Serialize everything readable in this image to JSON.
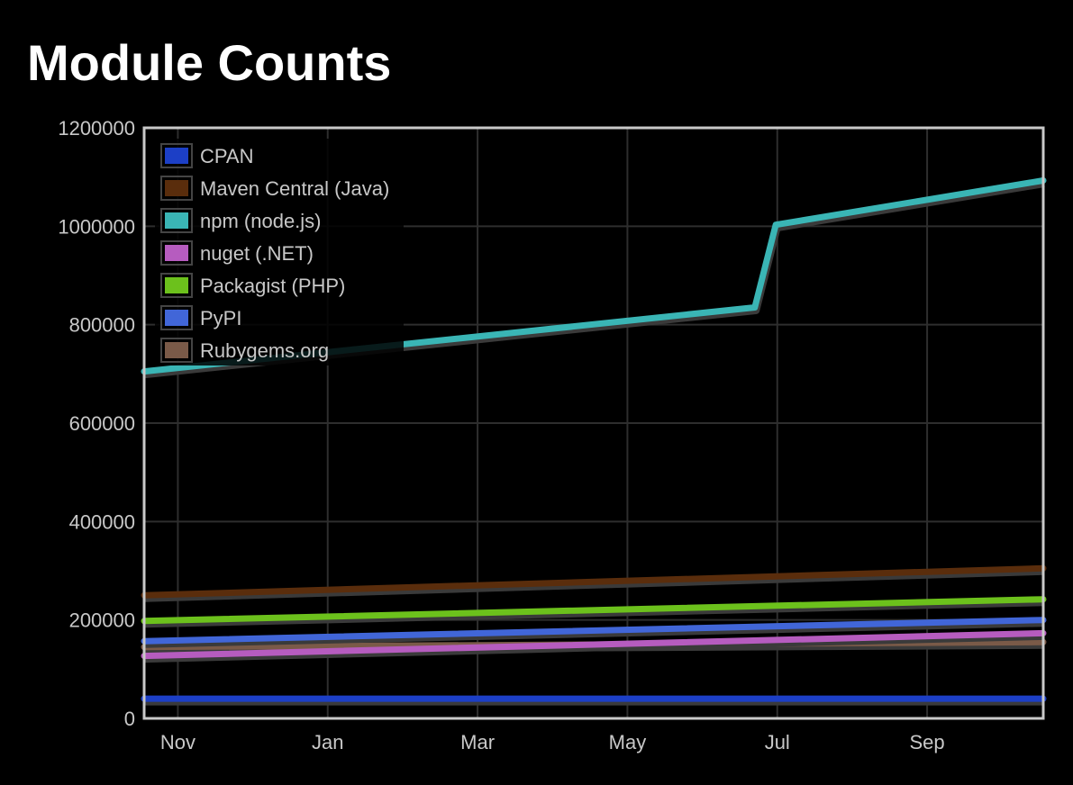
{
  "title": "Module Counts",
  "chart_data": {
    "type": "line",
    "title": "Module Counts",
    "xlabel": "",
    "ylabel": "",
    "ylim": [
      0,
      1200000
    ],
    "y_ticks": [
      0,
      200000,
      400000,
      600000,
      800000,
      1000000,
      1200000
    ],
    "y_tick_labels": [
      "0",
      "200000",
      "400000",
      "600000",
      "800000",
      "1000000",
      "1200000"
    ],
    "x_range": [
      -0.45,
      11.55
    ],
    "x_ticks": [
      0,
      2,
      4,
      6,
      8,
      10
    ],
    "x_tick_labels": [
      "Nov",
      "Jan",
      "Mar",
      "May",
      "Jul",
      "Sep"
    ],
    "grid": true,
    "legend_position": "top-left",
    "series": [
      {
        "name": "CPAN",
        "color": "#1c3fc6",
        "x": [
          -0.45,
          11.55
        ],
        "y": [
          40000,
          40000
        ]
      },
      {
        "name": "Maven Central (Java)",
        "color": "#5a2d0c",
        "x": [
          -0.45,
          11.55
        ],
        "y": [
          250000,
          305000
        ]
      },
      {
        "name": "npm (node.js)",
        "color": "#3ab5b5",
        "x": [
          -0.45,
          7.7,
          7.98,
          11.55
        ],
        "y": [
          705000,
          835000,
          1003000,
          1093000
        ]
      },
      {
        "name": "nuget (.NET)",
        "color": "#b65cbf",
        "x": [
          -0.45,
          11.55
        ],
        "y": [
          127000,
          173000
        ]
      },
      {
        "name": "Packagist (PHP)",
        "color": "#6cc11c",
        "x": [
          -0.45,
          11.55
        ],
        "y": [
          198000,
          242000
        ]
      },
      {
        "name": "PyPI",
        "color": "#4166d8",
        "x": [
          -0.45,
          11.55
        ],
        "y": [
          157000,
          200000
        ]
      },
      {
        "name": "Rubygems.org",
        "color": "#7a5a48",
        "x": [
          -0.45,
          11.55
        ],
        "y": [
          145000,
          155000
        ]
      }
    ]
  }
}
